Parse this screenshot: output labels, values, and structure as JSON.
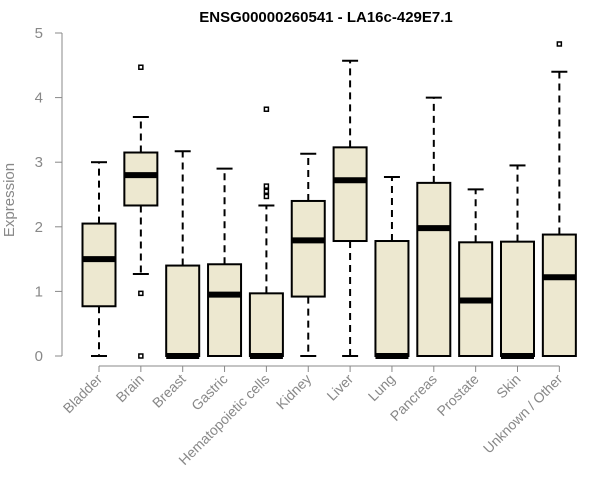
{
  "chart_data": {
    "type": "boxplot",
    "title": "ENSG00000260541 - LA16c-429E7.1",
    "xlabel": "",
    "ylabel": "Expression",
    "ylim": [
      0,
      5
    ],
    "yticks": [
      0,
      1,
      2,
      3,
      4,
      5
    ],
    "box_color": "#ede8d0",
    "categories": [
      "Bladder",
      "Brain",
      "Breast",
      "Gastric",
      "Hematopoietic cells",
      "Kidney",
      "Liver",
      "Lung",
      "Pancreas",
      "Prostate",
      "Skin",
      "Unknown / Other"
    ],
    "series": [
      {
        "name": "Bladder",
        "min": 0,
        "q1": 0.77,
        "median": 1.5,
        "q3": 2.05,
        "max": 3.0,
        "outliers": []
      },
      {
        "name": "Brain",
        "min": 1.27,
        "q1": 2.33,
        "median": 2.8,
        "q3": 3.15,
        "max": 3.7,
        "outliers": [
          0,
          0.97,
          4.47
        ]
      },
      {
        "name": "Breast",
        "min": 0,
        "q1": 0,
        "median": 0,
        "q3": 1.4,
        "max": 3.17,
        "outliers": []
      },
      {
        "name": "Gastric",
        "min": 0,
        "q1": 0,
        "median": 0.95,
        "q3": 1.42,
        "max": 2.9,
        "outliers": []
      },
      {
        "name": "Hematopoietic cells",
        "min": 0,
        "q1": 0,
        "median": 0,
        "q3": 0.97,
        "max": 2.33,
        "outliers": [
          2.47,
          2.55,
          2.63,
          3.82
        ]
      },
      {
        "name": "Kidney",
        "min": 0,
        "q1": 0.92,
        "median": 1.79,
        "q3": 2.4,
        "max": 3.13,
        "outliers": []
      },
      {
        "name": "Liver",
        "min": 0,
        "q1": 1.78,
        "median": 2.72,
        "q3": 3.23,
        "max": 4.57,
        "outliers": []
      },
      {
        "name": "Lung",
        "min": 0,
        "q1": 0,
        "median": 0,
        "q3": 1.78,
        "max": 2.77,
        "outliers": []
      },
      {
        "name": "Pancreas",
        "min": 0,
        "q1": 0,
        "median": 1.98,
        "q3": 2.68,
        "max": 4.0,
        "outliers": []
      },
      {
        "name": "Prostate",
        "min": 0,
        "q1": 0,
        "median": 0.86,
        "q3": 1.76,
        "max": 2.58,
        "outliers": []
      },
      {
        "name": "Skin",
        "min": 0,
        "q1": 0,
        "median": 0,
        "q3": 1.77,
        "max": 2.95,
        "outliers": []
      },
      {
        "name": "Unknown / Other",
        "min": 0,
        "q1": 0,
        "median": 1.22,
        "q3": 1.88,
        "max": 4.4,
        "outliers": [
          4.83
        ]
      }
    ]
  }
}
